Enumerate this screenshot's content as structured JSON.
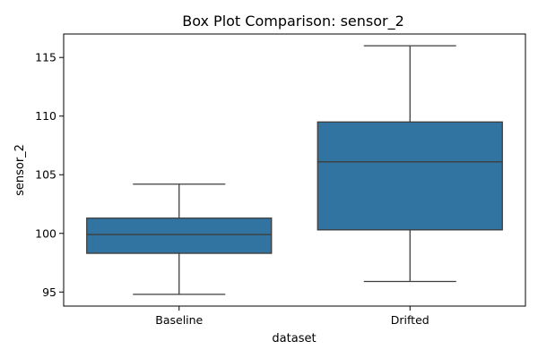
{
  "chart_data": {
    "type": "box",
    "title": "Box Plot Comparison: sensor_2",
    "xlabel": "dataset",
    "ylabel": "sensor_2",
    "categories": [
      "Baseline",
      "Drifted"
    ],
    "ylim": [
      93.8,
      117.0
    ],
    "yticks": [
      95,
      100,
      105,
      110,
      115
    ],
    "grid": false,
    "legend": "none",
    "boxes": [
      {
        "category": "Baseline",
        "whisker_low": 94.8,
        "q1": 98.3,
        "median": 99.9,
        "q3": 101.3,
        "whisker_high": 104.2
      },
      {
        "category": "Drifted",
        "whisker_low": 95.9,
        "q1": 100.3,
        "median": 106.1,
        "q3": 109.5,
        "whisker_high": 116.0
      }
    ],
    "colors": {
      "box_fill": "#3274a1",
      "line": "#3d3d3d",
      "axis": "#000000"
    }
  }
}
